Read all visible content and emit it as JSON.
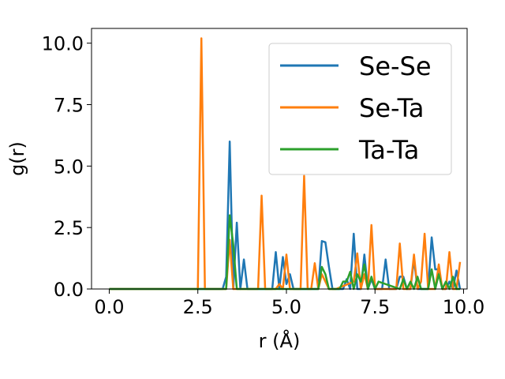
{
  "chart_data": {
    "type": "line",
    "xlabel": "r (Å)",
    "ylabel": "g(r)",
    "xlim": [
      -0.5,
      10.1
    ],
    "ylim": [
      0,
      10.6
    ],
    "xticks": [
      0.0,
      2.5,
      5.0,
      7.5,
      10.0
    ],
    "xtick_labels": [
      "0.0",
      "2.5",
      "5.0",
      "7.5",
      "10.0"
    ],
    "yticks": [
      0.0,
      2.5,
      5.0,
      7.5,
      10.0
    ],
    "ytick_labels": [
      "0.0",
      "2.5",
      "5.0",
      "7.5",
      "10.0"
    ],
    "grid": false,
    "legend_position": "top-right",
    "series": [
      {
        "name": "Se-Se",
        "color": "#1f77b4",
        "x": [
          0.0,
          3.2,
          3.3,
          3.4,
          3.5,
          3.6,
          3.7,
          3.8,
          3.9,
          4.6,
          4.7,
          4.8,
          4.9,
          5.0,
          5.1,
          5.2,
          5.3,
          5.9,
          6.0,
          6.1,
          6.2,
          6.3,
          6.6,
          6.7,
          6.8,
          6.9,
          7.0,
          7.1,
          7.2,
          7.3,
          7.4,
          7.5,
          7.6,
          7.7,
          7.8,
          7.9,
          8.0,
          8.1,
          8.2,
          8.3,
          8.4,
          8.5,
          8.6,
          8.7,
          8.8,
          8.9,
          9.0,
          9.1,
          9.2,
          9.3,
          9.4,
          9.5,
          9.6,
          9.7,
          9.8,
          9.9
        ],
        "y": [
          0.0,
          0.0,
          0.5,
          6.0,
          0.0,
          2.7,
          0.0,
          1.2,
          0.0,
          0.0,
          1.5,
          0.0,
          1.3,
          0.2,
          0.6,
          0.0,
          0.0,
          0.0,
          1.95,
          1.9,
          0.9,
          0.0,
          0.0,
          0.4,
          0.0,
          2.25,
          0.0,
          0.0,
          1.4,
          0.0,
          0.4,
          0.0,
          0.0,
          0.0,
          1.2,
          0.0,
          0.0,
          0.0,
          0.5,
          0.5,
          0.0,
          0.0,
          1.2,
          0.0,
          0.0,
          0.0,
          0.0,
          2.1,
          0.8,
          0.8,
          0.0,
          0.0,
          0.3,
          0.0,
          0.75,
          0.0
        ]
      },
      {
        "name": "Se-Ta",
        "color": "#ff7f0e",
        "x": [
          0.0,
          2.4,
          2.5,
          2.6,
          2.7,
          3.3,
          3.4,
          3.5,
          3.6,
          4.2,
          4.3,
          4.4,
          4.7,
          4.8,
          4.9,
          5.0,
          5.1,
          5.3,
          5.4,
          5.5,
          5.6,
          5.7,
          5.8,
          5.9,
          6.0,
          6.1,
          6.2,
          6.3,
          6.4,
          6.9,
          7.0,
          7.1,
          7.2,
          7.3,
          7.4,
          7.5,
          7.6,
          8.0,
          8.1,
          8.2,
          8.3,
          8.4,
          8.5,
          8.6,
          8.7,
          8.8,
          8.9,
          9.0,
          9.1,
          9.2,
          9.3,
          9.4,
          9.5,
          9.6,
          9.7,
          9.8,
          9.9
        ],
        "y": [
          0.0,
          0.0,
          0.0,
          10.2,
          0.0,
          0.0,
          2.0,
          0.0,
          0.0,
          0.0,
          3.8,
          0.0,
          0.0,
          0.2,
          0.0,
          1.4,
          0.0,
          0.0,
          0.0,
          4.6,
          0.0,
          0.0,
          1.05,
          0.0,
          0.6,
          0.3,
          0.0,
          0.0,
          0.0,
          0.3,
          1.45,
          0.0,
          0.6,
          0.0,
          2.6,
          0.0,
          0.0,
          0.0,
          0.0,
          1.85,
          0.0,
          0.0,
          0.0,
          1.4,
          0.0,
          0.3,
          2.25,
          0.0,
          0.0,
          0.0,
          1.0,
          0.0,
          0.0,
          1.5,
          0.0,
          0.0,
          1.1
        ]
      },
      {
        "name": "Ta-Ta",
        "color": "#2ca02c",
        "x": [
          0.0,
          3.3,
          3.4,
          3.5,
          3.6,
          5.9,
          6.0,
          6.1,
          6.2,
          6.5,
          6.6,
          6.7,
          6.8,
          6.9,
          7.0,
          7.1,
          7.2,
          7.3,
          7.4,
          7.5,
          7.6,
          8.2,
          8.3,
          8.4,
          8.5,
          8.6,
          8.7,
          8.8,
          8.9,
          9.0,
          9.1,
          9.2,
          9.3,
          9.4,
          9.5,
          9.6,
          9.7,
          9.8,
          9.9
        ],
        "y": [
          0.0,
          0.0,
          3.0,
          1.8,
          0.0,
          0.0,
          0.9,
          0.6,
          0.0,
          0.0,
          0.3,
          0.3,
          0.7,
          0.0,
          0.6,
          0.3,
          1.0,
          0.0,
          0.5,
          0.0,
          0.3,
          0.0,
          0.4,
          0.0,
          0.3,
          0.0,
          0.5,
          0.0,
          0.0,
          0.0,
          0.8,
          0.0,
          0.6,
          0.0,
          0.3,
          0.0,
          0.5,
          0.0,
          0.0
        ]
      }
    ]
  }
}
